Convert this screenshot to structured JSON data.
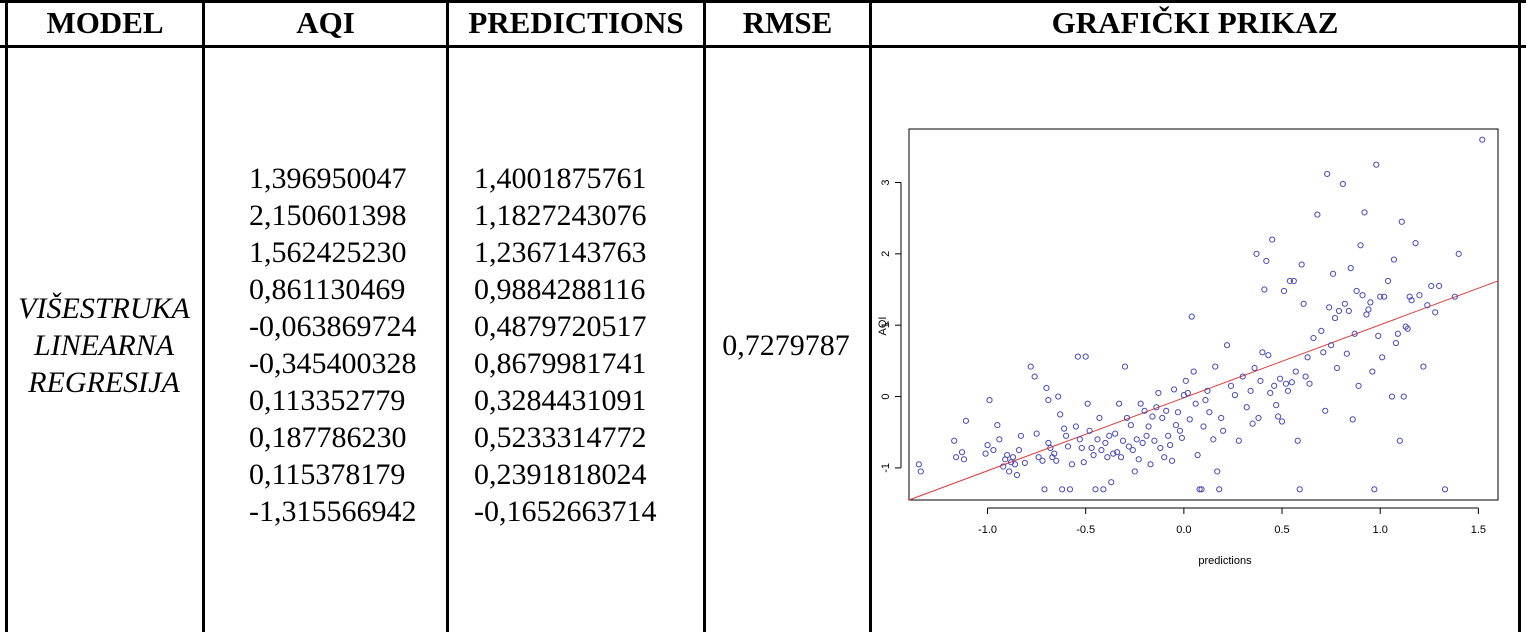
{
  "header": {
    "model": "MODEL",
    "aqi": "AQI",
    "predictions": "PREDICTIONS",
    "rmse": "RMSE",
    "graph": "GRAFIČKI PRIKAZ"
  },
  "row": {
    "model_lines": [
      "VIŠESTRUKA",
      "LINEARNA",
      "REGRESIJA"
    ],
    "aqi_values": [
      "1,396950047",
      "2,150601398",
      "1,562425230",
      "0,861130469",
      "-0,063869724",
      "-0,345400328",
      "0,113352779",
      "0,187786230",
      "0,115378179",
      "-1,315566942"
    ],
    "prediction_values": [
      "1,4001875761",
      "1,1827243076",
      "1,2367143763",
      "0,9884288116",
      "0,4879720517",
      "0,8679981741",
      "0,3284431091",
      "0,5233314772",
      "0,2391818024",
      "-0,1652663714"
    ],
    "rmse": "0,7279787"
  },
  "chart_data": {
    "type": "scatter",
    "xlabel": "predictions",
    "ylabel": "AQI",
    "xlim": [
      -1.4,
      1.6
    ],
    "ylim": [
      -1.45,
      3.75
    ],
    "x_ticks": [
      "-1.0",
      "-0.5",
      "0.0",
      "0.5",
      "1.0",
      "1.5"
    ],
    "y_ticks": [
      "-1",
      "0",
      "1",
      "2",
      "3"
    ],
    "point_color": "#4a4ab8",
    "line_color": "#e23a3a",
    "fit_line": {
      "x": [
        -1.4,
        1.6
      ],
      "y": [
        -1.45,
        1.62
      ]
    },
    "points": [
      [
        -1.35,
        -0.95
      ],
      [
        -1.34,
        -1.05
      ],
      [
        -1.17,
        -0.62
      ],
      [
        -1.16,
        -0.85
      ],
      [
        -1.13,
        -0.78
      ],
      [
        -1.12,
        -0.88
      ],
      [
        -1.11,
        -0.34
      ],
      [
        -1.01,
        -0.8
      ],
      [
        -1.0,
        -0.68
      ],
      [
        -0.99,
        -0.05
      ],
      [
        -0.97,
        -0.75
      ],
      [
        -0.95,
        -0.4
      ],
      [
        -0.94,
        -0.6
      ],
      [
        -0.92,
        -0.98
      ],
      [
        -0.91,
        -0.88
      ],
      [
        -0.9,
        -0.82
      ],
      [
        -0.89,
        -1.05
      ],
      [
        -0.88,
        -0.92
      ],
      [
        -0.87,
        -0.85
      ],
      [
        -0.86,
        -0.95
      ],
      [
        -0.85,
        -1.1
      ],
      [
        -0.84,
        -0.75
      ],
      [
        -0.83,
        -0.55
      ],
      [
        -0.81,
        -0.93
      ],
      [
        -0.78,
        0.42
      ],
      [
        -0.76,
        0.28
      ],
      [
        -0.75,
        -0.52
      ],
      [
        -0.74,
        -0.85
      ],
      [
        -0.72,
        -0.9
      ],
      [
        -0.71,
        -1.3
      ],
      [
        -0.7,
        0.12
      ],
      [
        -0.69,
        -0.05
      ],
      [
        -0.69,
        -0.65
      ],
      [
        -0.68,
        -0.72
      ],
      [
        -0.67,
        -0.85
      ],
      [
        -0.66,
        -0.8
      ],
      [
        -0.65,
        -0.9
      ],
      [
        -0.64,
        0.0
      ],
      [
        -0.63,
        -0.25
      ],
      [
        -0.62,
        -1.3
      ],
      [
        -0.61,
        -0.45
      ],
      [
        -0.6,
        -0.55
      ],
      [
        -0.59,
        -0.7
      ],
      [
        -0.58,
        -1.3
      ],
      [
        -0.57,
        -0.95
      ],
      [
        -0.55,
        -0.42
      ],
      [
        -0.54,
        0.56
      ],
      [
        -0.53,
        -0.6
      ],
      [
        -0.52,
        -0.72
      ],
      [
        -0.51,
        -0.92
      ],
      [
        -0.5,
        0.56
      ],
      [
        -0.49,
        -0.1
      ],
      [
        -0.48,
        -0.48
      ],
      [
        -0.47,
        -0.72
      ],
      [
        -0.46,
        -0.82
      ],
      [
        -0.45,
        -1.3
      ],
      [
        -0.44,
        -0.6
      ],
      [
        -0.43,
        -0.3
      ],
      [
        -0.42,
        -0.75
      ],
      [
        -0.41,
        -1.3
      ],
      [
        -0.4,
        -0.65
      ],
      [
        -0.39,
        -0.85
      ],
      [
        -0.38,
        -0.55
      ],
      [
        -0.37,
        -1.2
      ],
      [
        -0.36,
        -0.8
      ],
      [
        -0.35,
        -0.52
      ],
      [
        -0.34,
        -0.78
      ],
      [
        -0.33,
        -0.1
      ],
      [
        -0.32,
        -0.85
      ],
      [
        -0.31,
        -0.62
      ],
      [
        -0.3,
        0.42
      ],
      [
        -0.29,
        -0.3
      ],
      [
        -0.28,
        -0.7
      ],
      [
        -0.27,
        -0.4
      ],
      [
        -0.26,
        -0.75
      ],
      [
        -0.25,
        -1.05
      ],
      [
        -0.24,
        -0.6
      ],
      [
        -0.23,
        -0.88
      ],
      [
        -0.22,
        -0.1
      ],
      [
        -0.21,
        -0.65
      ],
      [
        -0.2,
        -0.2
      ],
      [
        -0.19,
        -0.55
      ],
      [
        -0.18,
        -0.42
      ],
      [
        -0.17,
        -0.95
      ],
      [
        -0.16,
        -0.28
      ],
      [
        -0.15,
        -0.62
      ],
      [
        -0.14,
        -0.15
      ],
      [
        -0.13,
        0.05
      ],
      [
        -0.12,
        -0.72
      ],
      [
        -0.11,
        -0.3
      ],
      [
        -0.1,
        -0.85
      ],
      [
        -0.09,
        -0.2
      ],
      [
        -0.08,
        -0.55
      ],
      [
        -0.07,
        -0.68
      ],
      [
        -0.06,
        -0.9
      ],
      [
        -0.05,
        0.1
      ],
      [
        -0.04,
        -0.4
      ],
      [
        -0.03,
        -0.22
      ],
      [
        -0.02,
        -0.48
      ],
      [
        -0.01,
        -0.58
      ],
      [
        0.0,
        0.02
      ],
      [
        0.01,
        0.22
      ],
      [
        0.02,
        0.05
      ],
      [
        0.03,
        -0.32
      ],
      [
        0.04,
        1.12
      ],
      [
        0.05,
        0.35
      ],
      [
        0.06,
        -0.1
      ],
      [
        0.07,
        -0.82
      ],
      [
        0.08,
        -1.3
      ],
      [
        0.09,
        -1.3
      ],
      [
        0.1,
        -0.42
      ],
      [
        0.11,
        -0.05
      ],
      [
        0.12,
        0.08
      ],
      [
        0.13,
        -0.22
      ],
      [
        0.15,
        -0.6
      ],
      [
        0.16,
        0.42
      ],
      [
        0.17,
        -1.05
      ],
      [
        0.18,
        -1.3
      ],
      [
        0.19,
        -0.3
      ],
      [
        0.2,
        -0.48
      ],
      [
        0.22,
        0.72
      ],
      [
        0.24,
        0.15
      ],
      [
        0.26,
        0.02
      ],
      [
        0.28,
        -0.62
      ],
      [
        0.3,
        0.28
      ],
      [
        0.32,
        -0.15
      ],
      [
        0.34,
        0.08
      ],
      [
        0.35,
        -0.38
      ],
      [
        0.36,
        0.4
      ],
      [
        0.37,
        2.0
      ],
      [
        0.38,
        -0.3
      ],
      [
        0.39,
        0.22
      ],
      [
        0.4,
        0.62
      ],
      [
        0.41,
        1.5
      ],
      [
        0.42,
        1.9
      ],
      [
        0.43,
        0.58
      ],
      [
        0.44,
        0.05
      ],
      [
        0.45,
        2.2
      ],
      [
        0.46,
        0.15
      ],
      [
        0.47,
        -0.12
      ],
      [
        0.48,
        -0.28
      ],
      [
        0.49,
        0.25
      ],
      [
        0.5,
        -0.35
      ],
      [
        0.51,
        1.48
      ],
      [
        0.52,
        0.18
      ],
      [
        0.53,
        0.08
      ],
      [
        0.54,
        1.62
      ],
      [
        0.55,
        0.2
      ],
      [
        0.56,
        1.62
      ],
      [
        0.57,
        0.35
      ],
      [
        0.58,
        -0.62
      ],
      [
        0.59,
        -1.3
      ],
      [
        0.6,
        1.85
      ],
      [
        0.61,
        1.3
      ],
      [
        0.62,
        0.28
      ],
      [
        0.63,
        0.55
      ],
      [
        0.64,
        0.18
      ],
      [
        0.66,
        0.82
      ],
      [
        0.68,
        2.55
      ],
      [
        0.7,
        0.92
      ],
      [
        0.71,
        0.62
      ],
      [
        0.72,
        -0.2
      ],
      [
        0.73,
        3.12
      ],
      [
        0.74,
        1.25
      ],
      [
        0.75,
        0.72
      ],
      [
        0.76,
        1.72
      ],
      [
        0.77,
        1.1
      ],
      [
        0.78,
        0.4
      ],
      [
        0.79,
        1.2
      ],
      [
        0.81,
        2.98
      ],
      [
        0.82,
        1.3
      ],
      [
        0.83,
        0.6
      ],
      [
        0.84,
        1.2
      ],
      [
        0.85,
        1.8
      ],
      [
        0.86,
        -0.32
      ],
      [
        0.87,
        0.88
      ],
      [
        0.88,
        1.48
      ],
      [
        0.89,
        0.15
      ],
      [
        0.9,
        2.12
      ],
      [
        0.91,
        1.42
      ],
      [
        0.92,
        2.58
      ],
      [
        0.93,
        1.15
      ],
      [
        0.94,
        1.22
      ],
      [
        0.95,
        1.32
      ],
      [
        0.96,
        0.35
      ],
      [
        0.97,
        -1.3
      ],
      [
        0.98,
        3.25
      ],
      [
        0.99,
        0.85
      ],
      [
        1.0,
        1.4
      ],
      [
        1.01,
        0.55
      ],
      [
        1.02,
        1.4
      ],
      [
        1.04,
        1.62
      ],
      [
        1.06,
        0.0
      ],
      [
        1.07,
        1.92
      ],
      [
        1.08,
        0.75
      ],
      [
        1.09,
        0.88
      ],
      [
        1.1,
        -0.62
      ],
      [
        1.11,
        2.45
      ],
      [
        1.12,
        0.0
      ],
      [
        1.13,
        0.98
      ],
      [
        1.14,
        0.95
      ],
      [
        1.15,
        1.4
      ],
      [
        1.16,
        1.35
      ],
      [
        1.18,
        2.15
      ],
      [
        1.2,
        1.42
      ],
      [
        1.22,
        0.42
      ],
      [
        1.24,
        1.28
      ],
      [
        1.26,
        1.55
      ],
      [
        1.28,
        1.18
      ],
      [
        1.3,
        1.55
      ],
      [
        1.33,
        -1.3
      ],
      [
        1.38,
        1.4
      ],
      [
        1.4,
        2.0
      ],
      [
        1.52,
        3.6
      ]
    ]
  }
}
